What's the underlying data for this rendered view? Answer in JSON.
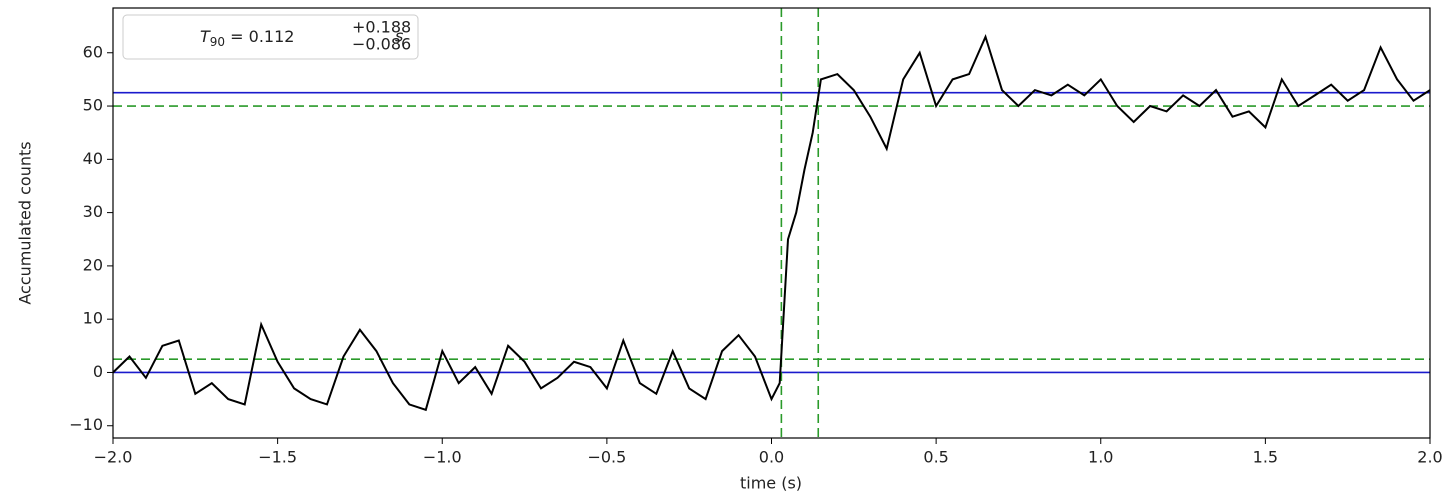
{
  "chart_data": {
    "type": "line",
    "xlabel": "time (s)",
    "ylabel": "Accumulated counts",
    "x": [
      -2.0,
      -1.95,
      -1.9,
      -1.85,
      -1.8,
      -1.75,
      -1.7,
      -1.65,
      -1.6,
      -1.55,
      -1.5,
      -1.45,
      -1.4,
      -1.35,
      -1.3,
      -1.25,
      -1.2,
      -1.15,
      -1.1,
      -1.05,
      -1.0,
      -0.95,
      -0.9,
      -0.85,
      -0.8,
      -0.75,
      -0.7,
      -0.65,
      -0.6,
      -0.55,
      -0.5,
      -0.45,
      -0.4,
      -0.35,
      -0.3,
      -0.25,
      -0.2,
      -0.15,
      -0.1,
      -0.05,
      0.0,
      0.025,
      0.05,
      0.075,
      0.1,
      0.125,
      0.15,
      0.2,
      0.25,
      0.3,
      0.35,
      0.4,
      0.45,
      0.5,
      0.55,
      0.6,
      0.65,
      0.7,
      0.75,
      0.8,
      0.85,
      0.9,
      0.95,
      1.0,
      1.05,
      1.1,
      1.15,
      1.2,
      1.25,
      1.3,
      1.35,
      1.4,
      1.45,
      1.5,
      1.55,
      1.6,
      1.65,
      1.7,
      1.75,
      1.8,
      1.85,
      1.9,
      1.95,
      2.0
    ],
    "series": [
      {
        "color": "#000000",
        "values": [
          0,
          3,
          -1,
          5,
          6,
          -4,
          -2,
          -5,
          -6,
          9,
          2,
          -3,
          -5,
          -6,
          3,
          8,
          4,
          -2,
          -6,
          -7,
          4,
          -2,
          1,
          -4,
          5,
          2,
          -3,
          -1,
          2,
          1,
          -3,
          6,
          -2,
          -4,
          4,
          -3,
          -5,
          4,
          7,
          3,
          -5,
          -2,
          25,
          30,
          38,
          45,
          55,
          56,
          53,
          48,
          42,
          55,
          60,
          50,
          55,
          56,
          63,
          53,
          50,
          53,
          52,
          54,
          52,
          55,
          50,
          47,
          50,
          49,
          52,
          50,
          53,
          48,
          49,
          46,
          55,
          50,
          52,
          54,
          51,
          53,
          61,
          55,
          51,
          53
        ]
      }
    ],
    "hlines": [
      {
        "value": 0,
        "color": "#1a1acc",
        "dashed": false
      },
      {
        "value": 52.5,
        "color": "#1a1acc",
        "dashed": false
      },
      {
        "value": 2.5,
        "color": "#2a9a2a",
        "dashed": true
      },
      {
        "value": 50,
        "color": "#2a9a2a",
        "dashed": true
      }
    ],
    "vlines": [
      {
        "value": 0.03,
        "color": "#2a9a2a",
        "dashed": true
      },
      {
        "value": 0.142,
        "color": "#2a9a2a",
        "dashed": true
      }
    ],
    "legend": {
      "base": "T",
      "sub": "90",
      "value": " = 0.112",
      "sup": "+0.188",
      "low": "−0.086",
      "unit": "s"
    },
    "xlim": [
      -2,
      2
    ],
    "ylim": [
      -12.3,
      68.4
    ],
    "xticks": [
      {
        "value": -2,
        "label": "−2.0"
      },
      {
        "value": -1.5,
        "label": "−1.5"
      },
      {
        "value": -1,
        "label": "−1.0"
      },
      {
        "value": -0.5,
        "label": "−0.5"
      },
      {
        "value": 0,
        "label": "0.0"
      },
      0.5,
      {
        "value": 1,
        "label": "1.0"
      },
      1.5,
      {
        "value": 2,
        "label": "2.0"
      }
    ],
    "yticks": [
      {
        "value": -10,
        "label": "−10"
      },
      0,
      10,
      20,
      30,
      40,
      50,
      60
    ]
  }
}
